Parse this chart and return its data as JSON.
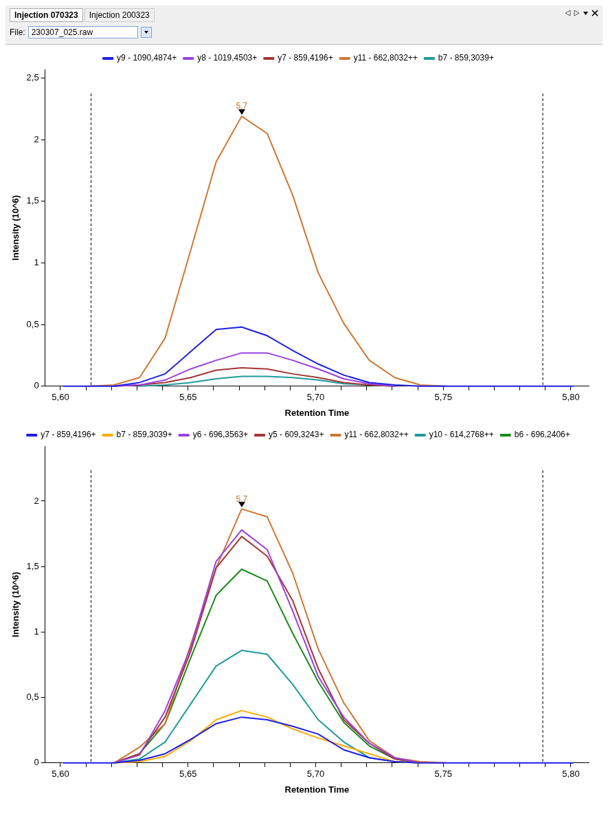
{
  "chart_data": [
    {
      "type": "line",
      "xlabel": "Retention Time",
      "ylabel": "Intensity (10^6)",
      "legend": "top",
      "annotations": [
        "Injection 070323",
        "Injection 200323",
        "File:",
        "230307_025.raw",
        {
          "text": "5,7",
          "x": 5.671,
          "y": 2.19
        }
      ],
      "x": [
        5.601,
        5.611,
        5.621,
        5.631,
        5.641,
        5.651,
        5.661,
        5.671,
        5.681,
        5.691,
        5.701,
        5.711,
        5.721,
        5.731,
        5.741,
        5.751,
        5.761,
        5.771,
        5.781,
        5.791,
        5.801
      ],
      "xlim": [
        5.594,
        5.807
      ],
      "xticks": [
        {
          "value": 5.6,
          "label": "5,60"
        },
        {
          "value": 5.61,
          "label": null
        },
        {
          "value": 5.62,
          "label": null
        },
        {
          "value": 5.63,
          "label": null
        },
        {
          "value": 5.64,
          "label": null
        },
        {
          "value": 5.65,
          "label": "5,65"
        },
        {
          "value": 5.66,
          "label": null
        },
        {
          "value": 5.67,
          "label": null
        },
        {
          "value": 5.68,
          "label": null
        },
        {
          "value": 5.69,
          "label": null
        },
        {
          "value": 5.7,
          "label": "5,70"
        },
        {
          "value": 5.71,
          "label": null
        },
        {
          "value": 5.72,
          "label": null
        },
        {
          "value": 5.73,
          "label": null
        },
        {
          "value": 5.74,
          "label": null
        },
        {
          "value": 5.75,
          "label": "5,75"
        },
        {
          "value": 5.76,
          "label": null
        },
        {
          "value": 5.77,
          "label": null
        },
        {
          "value": 5.78,
          "label": null
        },
        {
          "value": 5.79,
          "label": null
        },
        {
          "value": 5.8,
          "label": "5,80"
        }
      ],
      "ylim": [
        0,
        2.57
      ],
      "yticks": [
        0,
        {
          "value": 0.5,
          "label": "0,5"
        },
        1,
        {
          "value": 1.5,
          "label": "1,5"
        },
        2,
        {
          "value": 2.5,
          "label": "2,5"
        }
      ],
      "ref_lines": [
        {
          "axis": "x",
          "value": 5.612,
          "line_style": "dashed",
          "color": "#000000"
        },
        {
          "axis": "x",
          "value": 5.789,
          "line_style": "dashed",
          "color": "#000000"
        }
      ],
      "series": [
        {
          "name": "y9 - 1090,4874+",
          "color": "#1f1fe6",
          "values": [
            0,
            0,
            0,
            0.03,
            0.1,
            0.28,
            0.46,
            0.48,
            0.41,
            0.29,
            0.18,
            0.09,
            0.03,
            0.01,
            0,
            0,
            0,
            0,
            0,
            0,
            0
          ]
        },
        {
          "name": "y8 - 1019,4503+",
          "color": "#9b40e0",
          "values": [
            null,
            null,
            0,
            0.01,
            0.05,
            0.14,
            0.21,
            0.27,
            0.27,
            0.21,
            0.14,
            0.06,
            0.02,
            0,
            null,
            null,
            null,
            null,
            null,
            null,
            null
          ]
        },
        {
          "name": "y7 - 859,4196+",
          "color": "#a33535",
          "values": [
            null,
            null,
            0,
            0.01,
            0.03,
            0.07,
            0.13,
            0.15,
            0.14,
            0.1,
            0.07,
            0.03,
            0.01,
            0,
            null,
            null,
            null,
            null,
            null,
            null,
            null
          ]
        },
        {
          "name": "y11 - 662,8032++",
          "color": "#cc7733",
          "values": [
            null,
            0,
            0.01,
            0.07,
            0.39,
            1.1,
            1.82,
            2.19,
            2.05,
            1.55,
            0.92,
            0.51,
            0.21,
            0.07,
            0.01,
            0,
            null,
            null,
            null,
            null,
            null
          ]
        },
        {
          "name": "b7 - 859,3039+",
          "color": "#1f9a9a",
          "values": [
            null,
            null,
            null,
            0,
            0.01,
            0.03,
            0.06,
            0.08,
            0.08,
            0.07,
            0.05,
            0.02,
            0.01,
            0,
            null,
            null,
            null,
            null,
            null,
            null,
            null
          ]
        }
      ]
    },
    {
      "type": "line",
      "xlabel": "Retention Time",
      "ylabel": "Intensity (10^6)",
      "legend": "top",
      "annotations": [
        {
          "text": "5,7",
          "x": 5.671,
          "y": 1.94
        }
      ],
      "x": [
        5.601,
        5.611,
        5.621,
        5.631,
        5.641,
        5.651,
        5.661,
        5.671,
        5.681,
        5.691,
        5.701,
        5.711,
        5.721,
        5.731,
        5.741,
        5.751,
        5.761,
        5.771,
        5.781,
        5.791,
        5.801
      ],
      "xlim": [
        5.594,
        5.807
      ],
      "xticks": [
        {
          "value": 5.6,
          "label": "5,60"
        },
        {
          "value": 5.61,
          "label": null
        },
        {
          "value": 5.62,
          "label": null
        },
        {
          "value": 5.63,
          "label": null
        },
        {
          "value": 5.64,
          "label": null
        },
        {
          "value": 5.65,
          "label": "5,65"
        },
        {
          "value": 5.66,
          "label": null
        },
        {
          "value": 5.67,
          "label": null
        },
        {
          "value": 5.68,
          "label": null
        },
        {
          "value": 5.69,
          "label": null
        },
        {
          "value": 5.7,
          "label": "5,70"
        },
        {
          "value": 5.71,
          "label": null
        },
        {
          "value": 5.72,
          "label": null
        },
        {
          "value": 5.73,
          "label": null
        },
        {
          "value": 5.74,
          "label": null
        },
        {
          "value": 5.75,
          "label": "5,75"
        },
        {
          "value": 5.76,
          "label": null
        },
        {
          "value": 5.77,
          "label": null
        },
        {
          "value": 5.78,
          "label": null
        },
        {
          "value": 5.79,
          "label": null
        },
        {
          "value": 5.8,
          "label": "5,80"
        }
      ],
      "ylim": [
        0,
        2.42
      ],
      "yticks": [
        0,
        {
          "value": 0.5,
          "label": "0,5"
        },
        1,
        {
          "value": 1.5,
          "label": "1,5"
        },
        2
      ],
      "ref_lines": [
        {
          "axis": "x",
          "value": 5.612,
          "line_style": "dashed",
          "color": "#000000"
        },
        {
          "axis": "x",
          "value": 5.789,
          "line_style": "dashed",
          "color": "#000000"
        }
      ],
      "series": [
        {
          "name": "y7 - 859,4196+",
          "color": "#1f1fe6",
          "values": [
            0,
            0,
            0,
            0.02,
            0.07,
            0.18,
            0.3,
            0.35,
            0.33,
            0.28,
            0.22,
            0.1,
            0.04,
            0.01,
            0,
            0,
            0,
            0,
            0,
            0,
            0
          ]
        },
        {
          "name": "b7 - 859,3039+",
          "color": "#ffaa00",
          "values": [
            null,
            null,
            0,
            0.01,
            0.05,
            0.17,
            0.33,
            0.4,
            0.35,
            0.26,
            0.19,
            0.13,
            0.07,
            0.01,
            0,
            null,
            null,
            null,
            null,
            null,
            null
          ]
        },
        {
          "name": "y6 - 696,3563+",
          "color": "#9b40e0",
          "values": [
            null,
            null,
            0,
            0.06,
            0.4,
            0.88,
            1.54,
            1.78,
            1.63,
            1.16,
            0.66,
            0.35,
            0.15,
            0.04,
            0,
            null,
            null,
            null,
            null,
            null,
            null
          ]
        },
        {
          "name": "y5 - 609,3243+",
          "color": "#a33535",
          "values": [
            null,
            null,
            0,
            0.07,
            0.35,
            0.85,
            1.49,
            1.73,
            1.58,
            1.24,
            0.72,
            0.33,
            0.15,
            0.03,
            0,
            null,
            null,
            null,
            null,
            null,
            null
          ]
        },
        {
          "name": "y11 - 662,8032++",
          "color": "#cc7733",
          "values": [
            null,
            null,
            0,
            0.12,
            0.3,
            0.9,
            1.49,
            1.94,
            1.88,
            1.45,
            0.87,
            0.46,
            0.17,
            0.04,
            0.01,
            0,
            null,
            null,
            null,
            null,
            null
          ]
        },
        {
          "name": "y10 - 614,2768++",
          "color": "#1f9a9a",
          "values": [
            null,
            null,
            0,
            0.03,
            0.16,
            0.45,
            0.74,
            0.86,
            0.83,
            0.6,
            0.33,
            0.16,
            0.04,
            0.01,
            0,
            null,
            null,
            null,
            null,
            null,
            null
          ]
        },
        {
          "name": "b6 - 696,2406+",
          "color": "#1a8a1a",
          "values": [
            null,
            null,
            0,
            0.07,
            0.3,
            0.8,
            1.28,
            1.48,
            1.39,
            0.99,
            0.62,
            0.31,
            0.13,
            0.03,
            0,
            null,
            null,
            null,
            null,
            null,
            null
          ]
        }
      ]
    }
  ]
}
